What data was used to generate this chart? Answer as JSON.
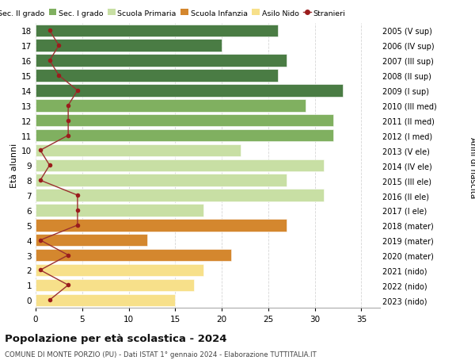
{
  "ages": [
    0,
    1,
    2,
    3,
    4,
    5,
    6,
    7,
    8,
    9,
    10,
    11,
    12,
    13,
    14,
    15,
    16,
    17,
    18
  ],
  "years": [
    "2023 (nido)",
    "2022 (nido)",
    "2021 (nido)",
    "2020 (mater)",
    "2019 (mater)",
    "2018 (mater)",
    "2017 (I ele)",
    "2016 (II ele)",
    "2015 (III ele)",
    "2014 (IV ele)",
    "2013 (V ele)",
    "2012 (I med)",
    "2011 (II med)",
    "2010 (III med)",
    "2009 (I sup)",
    "2008 (II sup)",
    "2007 (III sup)",
    "2006 (IV sup)",
    "2005 (V sup)"
  ],
  "bar_values": [
    15,
    17,
    18,
    21,
    12,
    27,
    18,
    31,
    27,
    31,
    22,
    32,
    32,
    29,
    33,
    26,
    27,
    20,
    26
  ],
  "stranieri_values": [
    1.5,
    3.5,
    0.5,
    3.5,
    0.5,
    4.5,
    4.5,
    4.5,
    0.5,
    1.5,
    0.5,
    3.5,
    3.5,
    3.5,
    4.5,
    2.5,
    1.5,
    2.5,
    1.5
  ],
  "bar_colors": {
    "nido": "#f7e08a",
    "mater": "#d4872e",
    "ele": "#c8dfa4",
    "med": "#80b060",
    "sup": "#4a7c44"
  },
  "stranieri_color": "#9b1c1c",
  "stranieri_line_color": "#9b3030",
  "title": "Popolazione per età scolastica - 2024",
  "subtitle": "COMUNE DI MONTE PORZIO (PU) - Dati ISTAT 1° gennaio 2024 - Elaborazione TUTTITALIA.IT",
  "ylabel": "Età alunni",
  "ylabel2": "Anni di nascita",
  "xlim": [
    0,
    37
  ],
  "xticks": [
    0,
    5,
    10,
    15,
    20,
    25,
    30,
    35
  ],
  "legend_labels": [
    "Sec. II grado",
    "Sec. I grado",
    "Scuola Primaria",
    "Scuola Infanzia",
    "Asilo Nido",
    "Stranieri"
  ],
  "legend_colors": [
    "#4a7c44",
    "#80b060",
    "#c8dfa4",
    "#d4872e",
    "#f7e08a",
    "#9b1c1c"
  ],
  "background_color": "#ffffff",
  "grid_color": "#cccccc"
}
